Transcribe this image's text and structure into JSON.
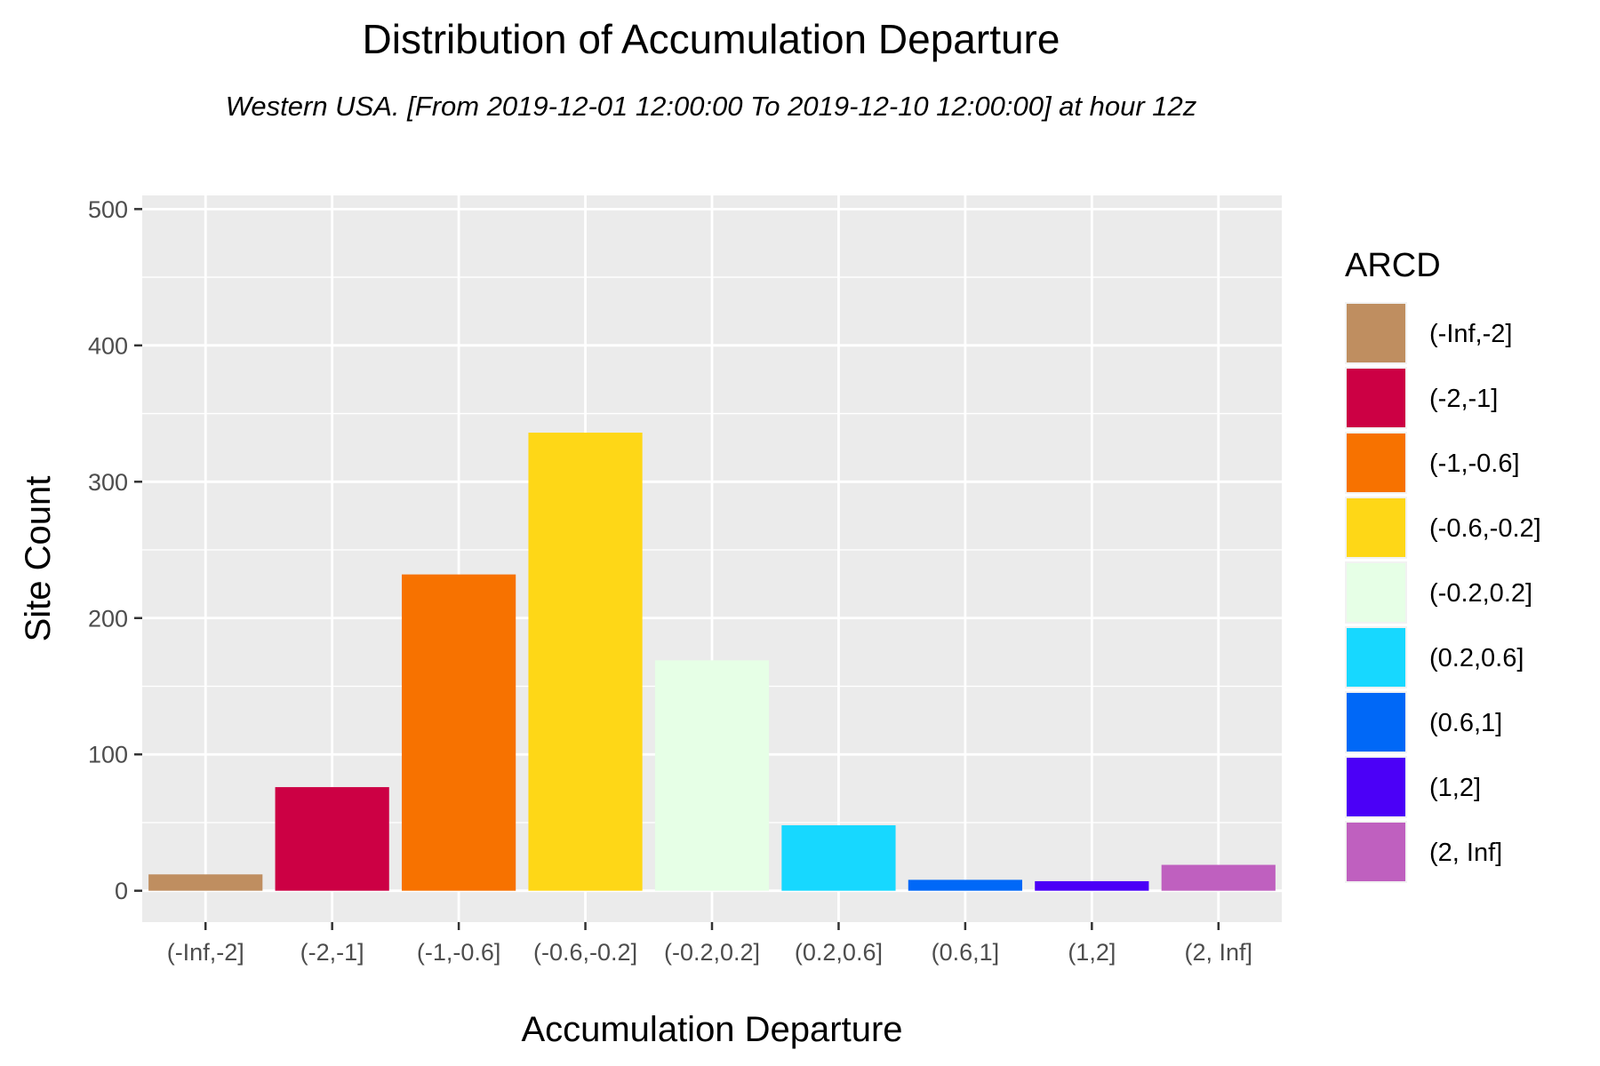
{
  "chart_data": {
    "type": "bar",
    "title": "Distribution of Accumulation Departure",
    "subtitle": "Western USA.  [From 2019-12-01 12:00:00 To 2019-12-10 12:00:00] at hour 12z",
    "xlabel": "Accumulation Departure",
    "ylabel": "Site Count",
    "ylim": [
      -23,
      510
    ],
    "yticks": [
      0,
      100,
      200,
      300,
      400,
      500
    ],
    "grid": true,
    "categories": [
      "(-Inf,-2]",
      "(-2,-1]",
      "(-1,-0.6]",
      "(-0.6,-0.2]",
      "(-0.2,0.2]",
      "(0.2,0.6]",
      "(0.6,1]",
      "(1,2]",
      "(2, Inf]"
    ],
    "values": [
      12,
      76,
      232,
      336,
      169,
      48,
      8,
      7,
      19
    ],
    "colors": [
      "#BF8E60",
      "#CC0044",
      "#F77200",
      "#FED717",
      "#E6FFE6",
      "#17D8FF",
      "#0068F7",
      "#4B00F7",
      "#BF60BF"
    ],
    "legend": {
      "title": "ARCD",
      "position": "right",
      "entries": [
        "(-Inf,-2]",
        "(-2,-1]",
        "(-1,-0.6]",
        "(-0.6,-0.2]",
        "(-0.2,0.2]",
        "(0.2,0.6]",
        "(0.6,1]",
        "(1,2]",
        "(2, Inf]"
      ]
    }
  }
}
